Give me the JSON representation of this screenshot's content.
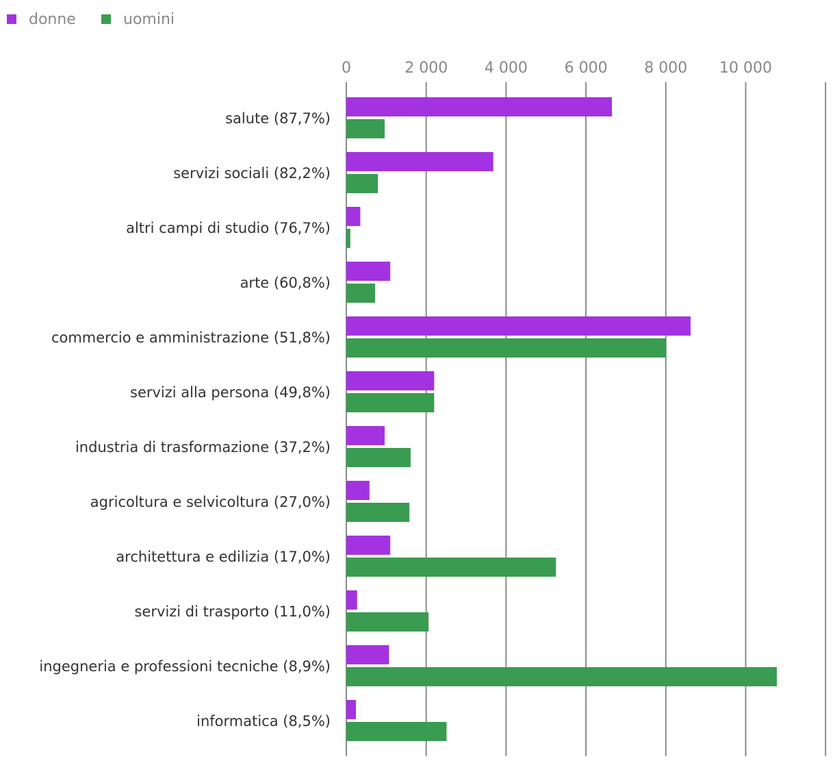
{
  "chart_data": {
    "type": "bar",
    "orientation": "horizontal",
    "legend_position": "top-left",
    "grid": true,
    "xlim": [
      0,
      12000
    ],
    "x_ticks": [
      0,
      2000,
      4000,
      6000,
      8000,
      10000
    ],
    "x_tick_labels": [
      "0",
      "2 000",
      "4 000",
      "6 000",
      "8 000",
      "10 000"
    ],
    "categories": [
      "salute (87,7%)",
      "servizi sociali (82,2%)",
      "altri campi di studio (76,7%)",
      "arte (60,8%)",
      "commercio e amministrazione (51,8%)",
      "servizi alla persona (49,8%)",
      "industria di trasformazione (37,2%)",
      "agricoltura e selvicoltura (27,0%)",
      "architettura e edilizia (17,0%)",
      "servizi di trasporto (11,0%)",
      "ingegneria e professioni tecniche (8,9%)",
      "informatica (8,5%)"
    ],
    "series": [
      {
        "name": "donne",
        "color": "#a333e0",
        "values": [
          6650,
          3680,
          350,
          1100,
          8620,
          2200,
          960,
          580,
          1100,
          270,
          1070,
          240
        ]
      },
      {
        "name": "uomini",
        "color": "#3a9c50",
        "values": [
          960,
          790,
          100,
          720,
          8010,
          2200,
          1610,
          1580,
          5250,
          2060,
          10780,
          2510
        ]
      }
    ]
  }
}
